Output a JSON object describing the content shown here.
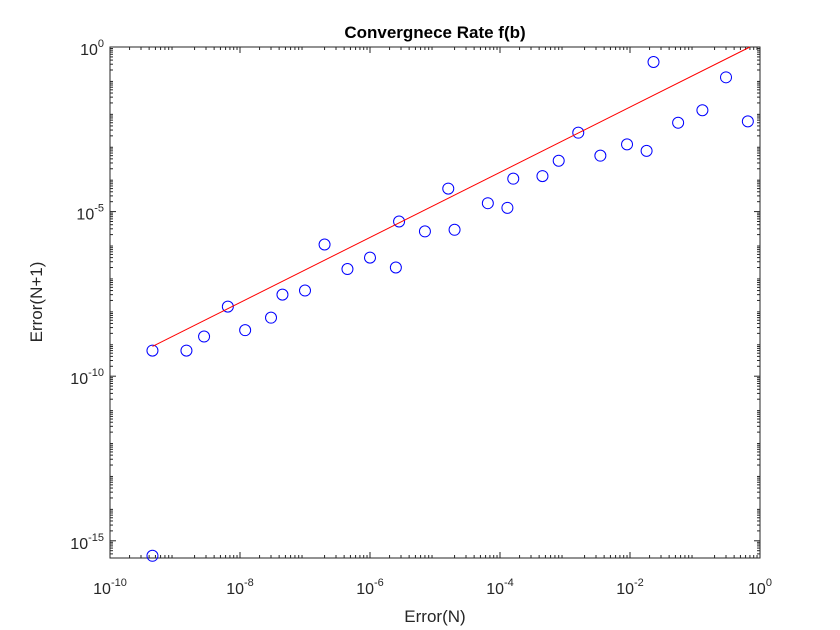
{
  "chart_data": {
    "type": "scatter",
    "title": "Convergnece Rate f(b)",
    "xlabel": "Error(N)",
    "ylabel": "Error(N+1)",
    "xscale": "log",
    "yscale": "log",
    "xlim": [
      1e-10,
      1
    ],
    "ylim": [
      3e-16,
      1
    ],
    "grid": false,
    "legend": "none",
    "x_ticks": [
      {
        "value": 1e-10,
        "base": "10",
        "exp": "-10"
      },
      {
        "value": 1e-08,
        "base": "10",
        "exp": "-8"
      },
      {
        "value": 1e-06,
        "base": "10",
        "exp": "-6"
      },
      {
        "value": 0.0001,
        "base": "10",
        "exp": "-4"
      },
      {
        "value": 0.01,
        "base": "10",
        "exp": "-2"
      },
      {
        "value": 1,
        "base": "10",
        "exp": "0"
      }
    ],
    "y_ticks": [
      {
        "value": 1e-15,
        "base": "10",
        "exp": "-15"
      },
      {
        "value": 1e-10,
        "base": "10",
        "exp": "-10"
      },
      {
        "value": 1e-05,
        "base": "10",
        "exp": "-5"
      },
      {
        "value": 1,
        "base": "10",
        "exp": "0"
      }
    ],
    "series": [
      {
        "marker": "circle",
        "color": "#0000ff",
        "points": [
          [
            4.5e-10,
            6e-10
          ],
          [
            4.5e-10,
            3.5e-16
          ],
          [
            1.5e-09,
            6e-10
          ],
          [
            2.8e-09,
            1.6e-09
          ],
          [
            6.5e-09,
            1.3e-08
          ],
          [
            1.2e-08,
            2.5e-09
          ],
          [
            3e-08,
            6e-09
          ],
          [
            4.5e-08,
            3e-08
          ],
          [
            1e-07,
            4e-08
          ],
          [
            2e-07,
            1e-06
          ],
          [
            4.5e-07,
            1.8e-07
          ],
          [
            1e-06,
            4e-07
          ],
          [
            2.5e-06,
            2e-07
          ],
          [
            2.8e-06,
            5e-06
          ],
          [
            7e-06,
            2.5e-06
          ],
          [
            1.6e-05,
            5e-05
          ],
          [
            2e-05,
            2.8e-06
          ],
          [
            6.5e-05,
            1.8e-05
          ],
          [
            0.00013,
            1.3e-05
          ],
          [
            0.00016,
            0.0001
          ],
          [
            0.00045,
            0.00012
          ],
          [
            0.0008,
            0.00035
          ],
          [
            0.0016,
            0.0025
          ],
          [
            0.0035,
            0.0005
          ],
          [
            0.009,
            0.0011
          ],
          [
            0.018,
            0.0007
          ],
          [
            0.023,
            0.35
          ],
          [
            0.055,
            0.005
          ],
          [
            0.13,
            0.012
          ],
          [
            0.3,
            0.12
          ],
          [
            0.65,
            0.0055
          ]
        ]
      },
      {
        "line": "fit",
        "color": "#ff0000",
        "points": [
          [
            4.5e-10,
            8e-10
          ],
          [
            0.7,
            1.0
          ]
        ]
      }
    ]
  }
}
